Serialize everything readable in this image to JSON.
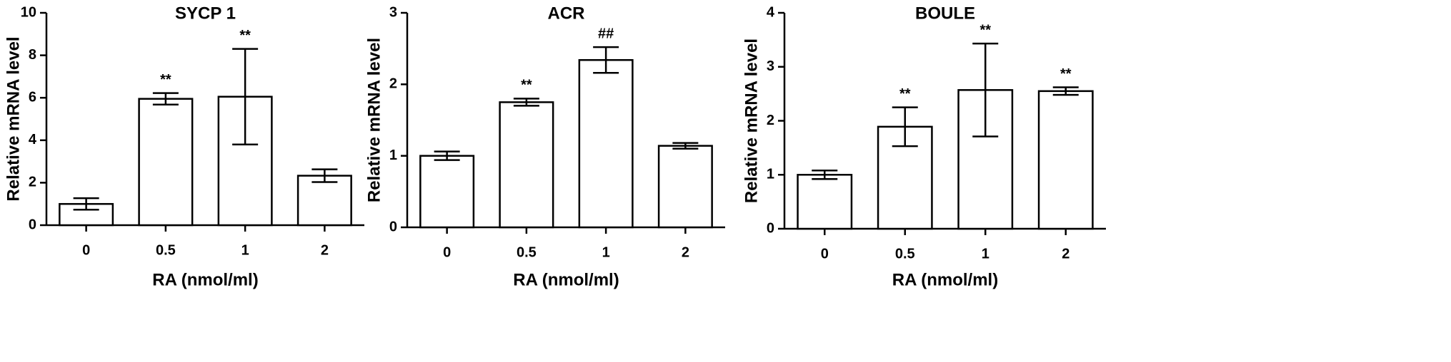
{
  "chart_data": [
    {
      "type": "bar",
      "title": "SYCP 1",
      "xlabel": "RA (nmol/ml)",
      "ylabel": "Relative mRNA level",
      "categories": [
        "0",
        "0.5",
        "1",
        "2"
      ],
      "values": [
        1.0,
        5.95,
        6.05,
        2.33
      ],
      "errors": [
        0.27,
        0.27,
        2.25,
        0.3
      ],
      "annotations": [
        null,
        "**",
        "**",
        null
      ],
      "color": "#ffffff",
      "edgecolor": "#000000",
      "ylim": [
        0,
        10
      ],
      "yticks": [
        0,
        2,
        4,
        6,
        8,
        10
      ]
    },
    {
      "type": "bar",
      "title": "ACR",
      "xlabel": "RA (nmol/ml)",
      "ylabel": "Relative mRNA level",
      "categories": [
        "0",
        "0.5",
        "1",
        "2"
      ],
      "values": [
        1.0,
        1.75,
        2.34,
        1.14
      ],
      "errors": [
        0.06,
        0.05,
        0.18,
        0.04
      ],
      "annotations": [
        null,
        "**",
        "##",
        null
      ],
      "color": "#ffffff",
      "edgecolor": "#000000",
      "ylim": [
        0,
        3
      ],
      "yticks": [
        0,
        1,
        2,
        3
      ]
    },
    {
      "type": "bar",
      "title": "BOULE",
      "xlabel": "RA (nmol/ml)",
      "ylabel": "Relative mRNA level",
      "categories": [
        "0",
        "0.5",
        "1",
        "2"
      ],
      "values": [
        1.0,
        1.89,
        2.57,
        2.55
      ],
      "errors": [
        0.08,
        0.36,
        0.86,
        0.07
      ],
      "annotations": [
        null,
        "**",
        "**",
        "**"
      ],
      "color": "#ffffff",
      "edgecolor": "#000000",
      "ylim": [
        0,
        4
      ],
      "yticks": [
        0,
        1,
        2,
        3,
        4
      ]
    }
  ]
}
